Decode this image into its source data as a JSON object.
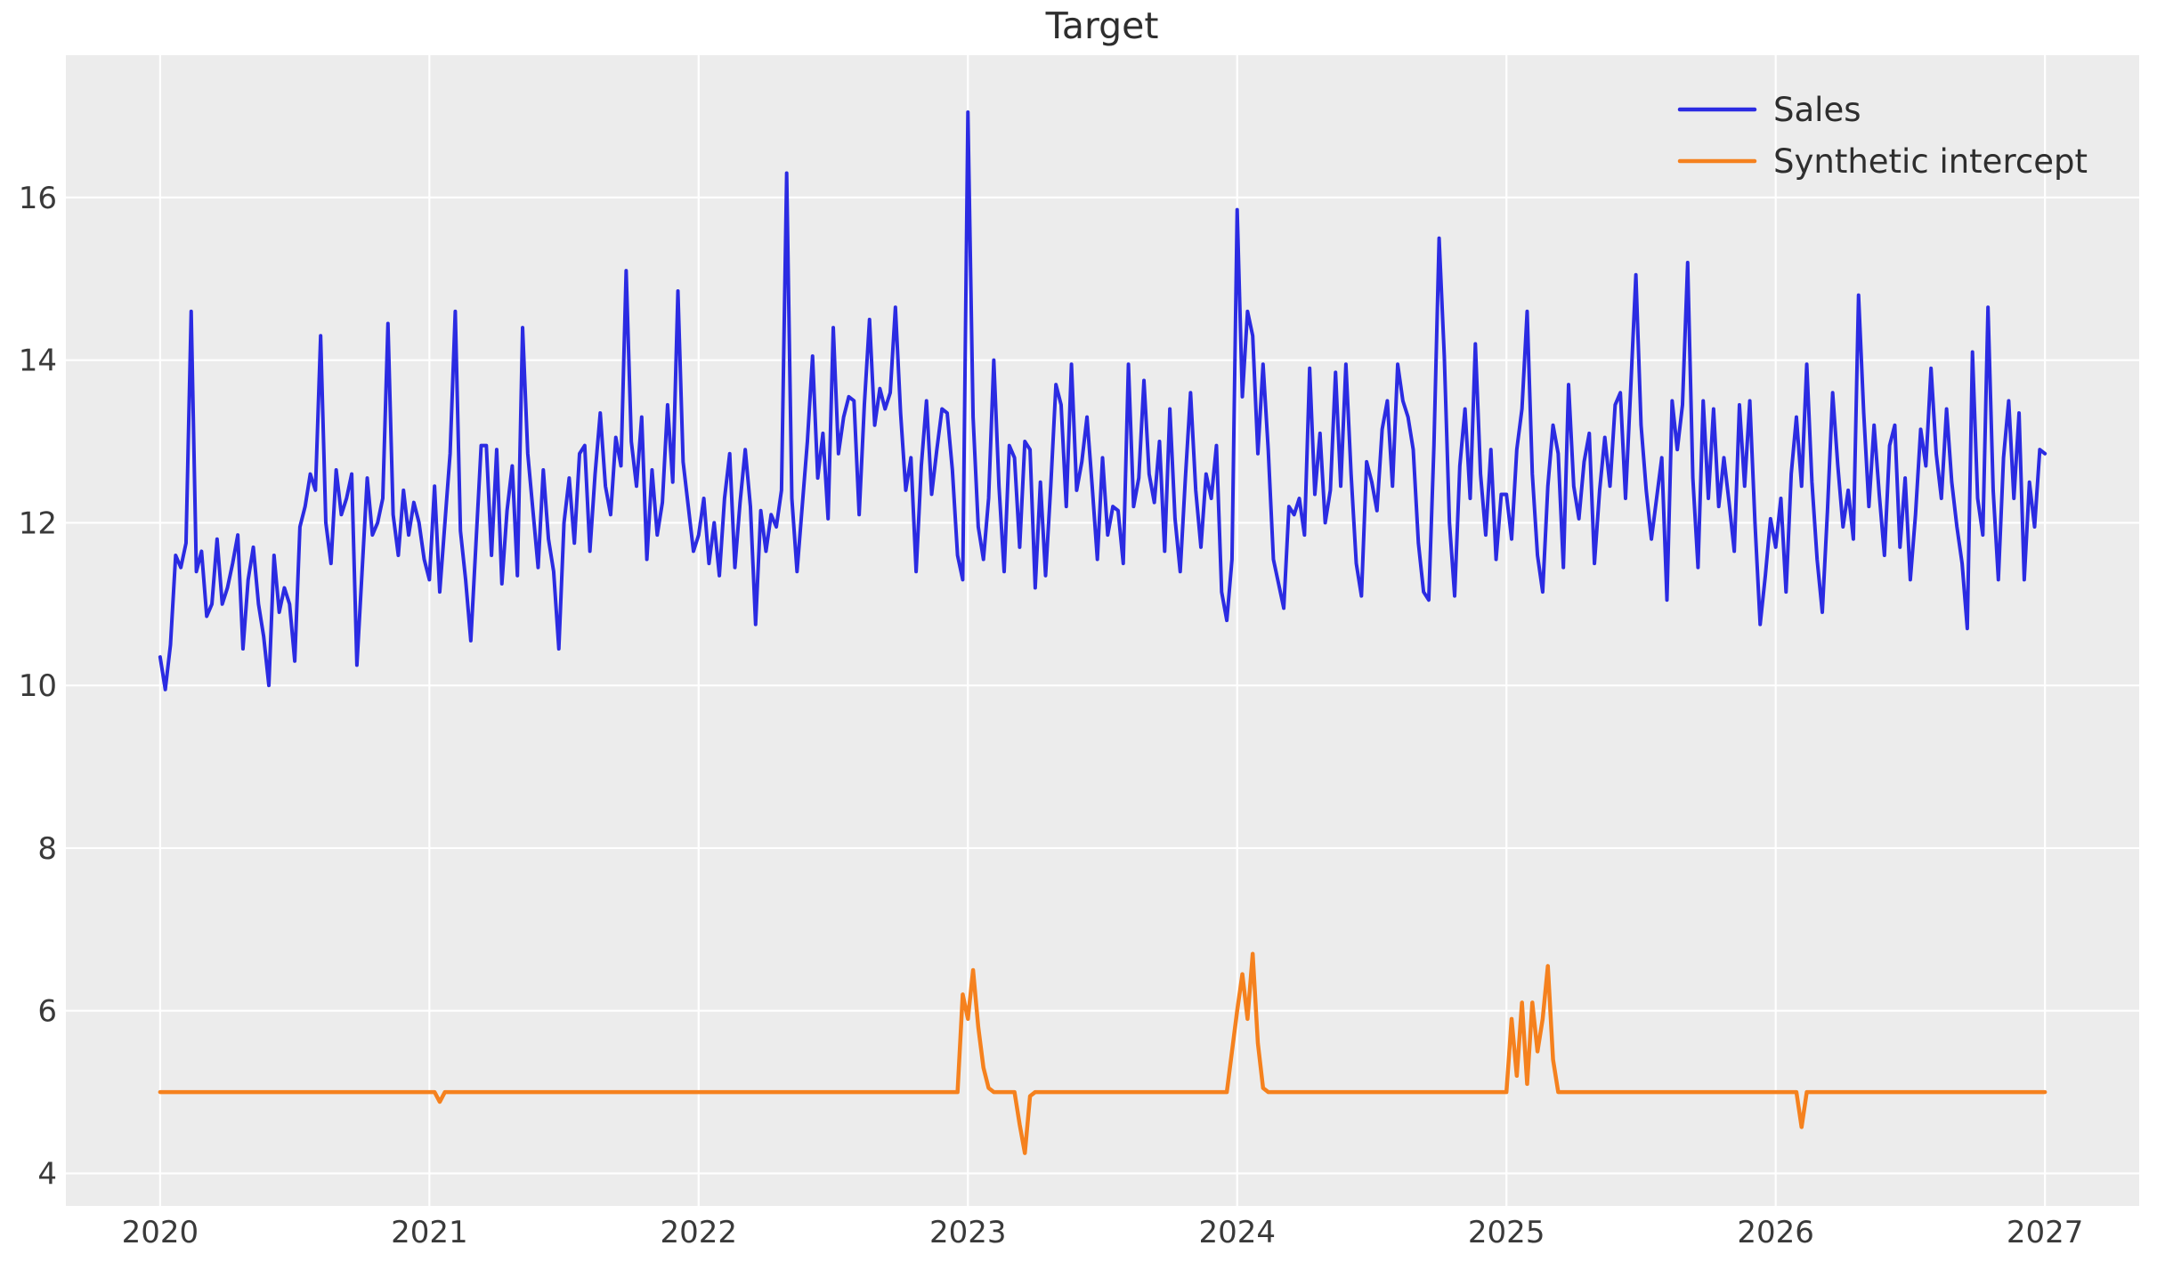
{
  "figure": {
    "title": "Target",
    "background_color": "#ffffff",
    "axes_background_color": "#ececec",
    "grid_color": "#ffffff",
    "tick_label_color": "#3a3a3a",
    "title_color": "#2e2e2e"
  },
  "legend": {
    "position": "upper right",
    "entries": [
      {
        "label": "Sales",
        "color": "#2b2be2"
      },
      {
        "label": "Synthetic intercept",
        "color": "#f5811e"
      }
    ]
  },
  "chart_data": {
    "type": "line",
    "title": "Target",
    "xlabel": "",
    "ylabel": "",
    "grid": true,
    "legend_position": "upper right",
    "x_axis": {
      "tick_labels": [
        "2020",
        "2021",
        "2022",
        "2023",
        "2024",
        "2025",
        "2026",
        "2027"
      ],
      "tick_values": [
        2020,
        2021,
        2022,
        2023,
        2024,
        2025,
        2026,
        2027
      ],
      "lim": [
        2019.65,
        2027.35
      ]
    },
    "y_axis": {
      "tick_labels": [
        "4",
        "6",
        "8",
        "10",
        "12",
        "14",
        "16"
      ],
      "tick_values": [
        4,
        6,
        8,
        10,
        12,
        14,
        16
      ],
      "lim": [
        3.6,
        17.75
      ]
    },
    "x_encoding": {
      "start": 2020.0,
      "step_years": 0.019230769,
      "n": 365,
      "unit": "weekly"
    },
    "series": [
      {
        "name": "Sales",
        "color": "#2b2be2",
        "line_width": 4,
        "values": [
          10.35,
          9.95,
          10.5,
          11.6,
          11.45,
          11.75,
          14.6,
          11.4,
          11.65,
          10.85,
          11.0,
          11.8,
          11.0,
          11.2,
          11.5,
          11.85,
          10.45,
          11.3,
          11.7,
          11.0,
          10.6,
          10.0,
          11.6,
          10.9,
          11.2,
          11.0,
          10.3,
          11.95,
          12.2,
          12.6,
          12.4,
          14.3,
          12.0,
          11.5,
          12.65,
          12.1,
          12.3,
          12.6,
          10.25,
          11.4,
          12.55,
          11.85,
          12.0,
          12.3,
          14.45,
          12.1,
          11.6,
          12.4,
          11.85,
          12.25,
          12.0,
          11.55,
          11.3,
          12.45,
          11.15,
          12.0,
          12.85,
          14.6,
          11.9,
          11.3,
          10.55,
          11.75,
          12.95,
          12.95,
          11.6,
          12.9,
          11.25,
          12.15,
          12.7,
          11.35,
          14.4,
          12.85,
          12.15,
          11.45,
          12.65,
          11.8,
          11.4,
          10.45,
          12.0,
          12.55,
          11.75,
          12.85,
          12.95,
          11.65,
          12.6,
          13.35,
          12.45,
          12.1,
          13.05,
          12.7,
          15.1,
          13.0,
          12.45,
          13.3,
          11.55,
          12.65,
          11.85,
          12.25,
          13.45,
          12.5,
          14.85,
          12.75,
          12.2,
          11.65,
          11.85,
          12.3,
          11.5,
          12.0,
          11.35,
          12.3,
          12.85,
          11.45,
          12.25,
          12.9,
          12.2,
          10.75,
          12.15,
          11.65,
          12.1,
          11.95,
          12.4,
          16.3,
          12.3,
          11.4,
          12.2,
          13.0,
          14.05,
          12.55,
          13.1,
          12.05,
          14.4,
          12.85,
          13.3,
          13.55,
          13.5,
          12.1,
          13.45,
          14.5,
          13.2,
          13.65,
          13.4,
          13.6,
          14.65,
          13.35,
          12.4,
          12.8,
          11.4,
          12.7,
          13.5,
          12.35,
          12.9,
          13.4,
          13.35,
          12.65,
          11.6,
          11.3,
          17.05,
          13.3,
          11.95,
          11.55,
          12.3,
          14.0,
          12.45,
          11.4,
          12.95,
          12.8,
          11.7,
          13.0,
          12.9,
          11.2,
          12.5,
          11.35,
          12.45,
          13.7,
          13.45,
          12.2,
          13.95,
          12.4,
          12.75,
          13.3,
          12.45,
          11.55,
          12.8,
          11.85,
          12.2,
          12.15,
          11.5,
          13.95,
          12.2,
          12.55,
          13.75,
          12.6,
          12.25,
          13.0,
          11.65,
          13.4,
          12.05,
          11.4,
          12.55,
          13.6,
          12.4,
          11.7,
          12.6,
          12.3,
          12.95,
          11.15,
          10.8,
          11.55,
          15.85,
          13.55,
          14.6,
          14.3,
          12.85,
          13.95,
          12.9,
          11.55,
          11.25,
          10.95,
          12.2,
          12.1,
          12.3,
          11.85,
          13.9,
          12.35,
          13.1,
          12.0,
          12.4,
          13.85,
          12.45,
          13.95,
          12.6,
          11.5,
          11.1,
          12.75,
          12.5,
          12.15,
          13.15,
          13.5,
          12.45,
          13.95,
          13.5,
          13.3,
          12.9,
          11.75,
          11.15,
          11.05,
          12.95,
          15.5,
          14.05,
          12.0,
          11.1,
          12.7,
          13.4,
          12.3,
          14.2,
          12.6,
          11.85,
          12.9,
          11.55,
          12.35,
          12.35,
          11.8,
          12.9,
          13.4,
          14.6,
          12.6,
          11.6,
          11.15,
          12.45,
          13.2,
          12.85,
          11.45,
          13.7,
          12.45,
          12.05,
          12.75,
          13.1,
          11.5,
          12.4,
          13.05,
          12.45,
          13.45,
          13.6,
          12.3,
          13.65,
          15.05,
          13.2,
          12.4,
          11.8,
          12.3,
          12.8,
          11.05,
          13.5,
          12.9,
          13.45,
          15.2,
          12.55,
          11.45,
          13.5,
          12.3,
          13.4,
          12.2,
          12.8,
          12.25,
          11.65,
          13.45,
          12.45,
          13.5,
          12.0,
          10.75,
          11.35,
          12.05,
          11.7,
          12.3,
          11.15,
          12.6,
          13.3,
          12.45,
          13.95,
          12.5,
          11.55,
          10.9,
          12.15,
          13.6,
          12.7,
          11.95,
          12.4,
          11.8,
          14.8,
          13.35,
          12.2,
          13.2,
          12.35,
          11.6,
          12.95,
          13.2,
          11.7,
          12.55,
          11.3,
          12.1,
          13.15,
          12.7,
          13.9,
          12.85,
          12.3,
          13.4,
          12.5,
          11.95,
          11.5,
          10.7,
          14.1,
          12.3,
          11.85,
          14.65,
          12.4,
          11.3,
          12.8,
          13.5,
          12.3,
          13.35,
          11.3,
          12.5,
          11.95,
          12.9,
          12.85
        ]
      },
      {
        "name": "Synthetic intercept",
        "color": "#f5811e",
        "line_width": 4.5,
        "n": 365,
        "base_value": 5.0,
        "deviation_points": [
          [
            54,
            4.88
          ],
          [
            155,
            6.2
          ],
          [
            156,
            5.9
          ],
          [
            157,
            6.5
          ],
          [
            158,
            5.8
          ],
          [
            159,
            5.3
          ],
          [
            160,
            5.05
          ],
          [
            166,
            4.6
          ],
          [
            167,
            4.25
          ],
          [
            168,
            4.95
          ],
          [
            207,
            5.5
          ],
          [
            208,
            6.0
          ],
          [
            209,
            6.45
          ],
          [
            210,
            5.9
          ],
          [
            211,
            6.7
          ],
          [
            212,
            5.6
          ],
          [
            213,
            5.05
          ],
          [
            261,
            5.9
          ],
          [
            262,
            5.2
          ],
          [
            263,
            6.1
          ],
          [
            264,
            5.1
          ],
          [
            265,
            6.1
          ],
          [
            266,
            5.5
          ],
          [
            267,
            5.9
          ],
          [
            268,
            6.55
          ],
          [
            269,
            5.4
          ],
          [
            317,
            4.57
          ]
        ]
      }
    ]
  }
}
